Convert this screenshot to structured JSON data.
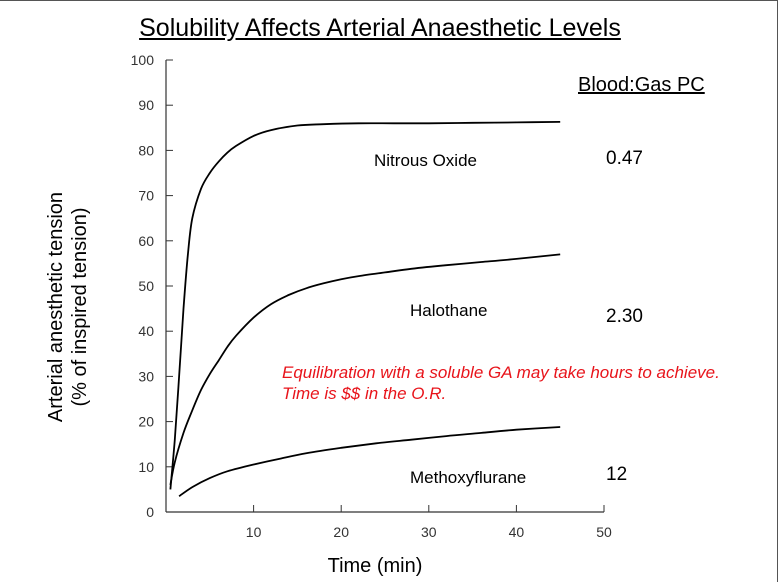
{
  "chart_data": {
    "type": "line",
    "title": "Solubility Affects Arterial Anaesthetic Levels",
    "xlabel": "Time (min)",
    "ylabel_line1": "Arterial anesthetic tension",
    "ylabel_line2": "(% of inspired tension)",
    "xlim": [
      0,
      50
    ],
    "ylim": [
      0,
      100
    ],
    "x_ticks": [
      "10",
      "20",
      "30",
      "40",
      "50"
    ],
    "y_ticks": [
      "0",
      "10",
      "20",
      "30",
      "40",
      "50",
      "60",
      "70",
      "80",
      "90",
      "100"
    ],
    "grid": false,
    "legend_header": "Blood:Gas PC",
    "series": [
      {
        "name": "Nitrous Oxide",
        "pc": "0.47",
        "color": "#000000",
        "x": [
          0.5,
          1,
          1.5,
          2,
          2.5,
          3,
          4,
          5,
          6,
          7,
          8,
          10,
          12,
          15,
          18,
          22,
          26,
          30,
          35,
          40,
          45
        ],
        "y": [
          5,
          16,
          30,
          45,
          57,
          65,
          71.5,
          75,
          77.5,
          79.5,
          81,
          83.2,
          84.5,
          85.5,
          85.8,
          86,
          86,
          86,
          86.1,
          86.2,
          86.3
        ]
      },
      {
        "name": "Halothane",
        "pc": "2.30",
        "color": "#000000",
        "x": [
          0.5,
          1,
          2,
          3,
          4,
          5,
          6,
          7,
          8,
          10,
          12,
          14,
          16,
          18,
          20,
          22,
          25,
          28,
          32,
          36,
          40,
          45
        ],
        "y": [
          6,
          11,
          17.5,
          22.5,
          27,
          30.5,
          33.5,
          36.5,
          39,
          43,
          46,
          48,
          49.5,
          50.6,
          51.5,
          52.2,
          53,
          53.8,
          54.6,
          55.3,
          56,
          57
        ]
      },
      {
        "name": "Methoxyflurane",
        "pc": "12",
        "color": "#000000",
        "x": [
          1.5,
          3,
          5,
          7,
          10,
          13,
          16,
          20,
          24,
          28,
          32,
          36,
          40,
          45
        ],
        "y": [
          3.5,
          5.5,
          7.5,
          9,
          10.5,
          11.8,
          13,
          14.2,
          15.2,
          16,
          16.8,
          17.5,
          18.2,
          18.8
        ]
      }
    ],
    "annotation": "Equilibration with a soluble GA may take hours to achieve. Time is $$ in the O.R."
  },
  "note": {
    "color": "#e8141b"
  }
}
